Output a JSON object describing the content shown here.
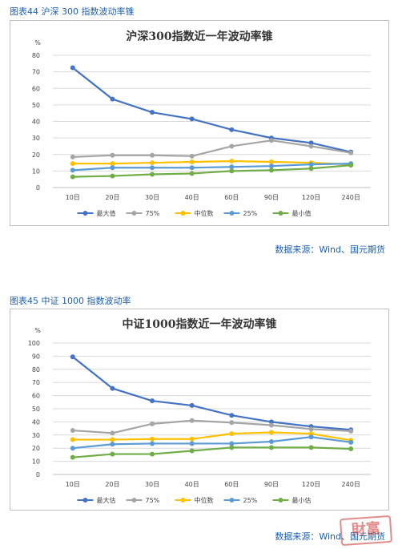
{
  "figures": [
    {
      "caption": "图表44 沪深 300 指数波动率锥",
      "source": "数据来源：Wind、国元期货"
    },
    {
      "caption": "图表45 中证 1000 指数波动率",
      "source": "数据来源：Wind、国元期货"
    }
  ],
  "watermark": "財富",
  "chart_data": [
    {
      "type": "line",
      "title": "沪深300指数近一年波动率锥",
      "ylabel": "%",
      "xlabel": "",
      "ylim": [
        0,
        80
      ],
      "yticks": [
        0,
        10,
        20,
        30,
        40,
        50,
        60,
        70,
        80
      ],
      "categories": [
        "10日",
        "20日",
        "30日",
        "40日",
        "60日",
        "90日",
        "120日",
        "240日"
      ],
      "grid": true,
      "legend_position": "bottom",
      "series": [
        {
          "name": "最大值",
          "color": "#4472c4",
          "values": [
            72.5,
            53.5,
            45.5,
            41.5,
            35,
            30,
            27,
            21.5
          ]
        },
        {
          "name": "75%",
          "color": "#a5a5a5",
          "values": [
            18.5,
            19.5,
            19.5,
            19,
            25,
            28.5,
            25,
            21
          ]
        },
        {
          "name": "中位数",
          "color": "#ffc000",
          "values": [
            14.5,
            14.5,
            15,
            15.5,
            16,
            15.5,
            15,
            14
          ]
        },
        {
          "name": "25%",
          "color": "#5b9bd5",
          "values": [
            10.5,
            12,
            12,
            12,
            12.5,
            13,
            14,
            14.5
          ]
        },
        {
          "name": "最小值",
          "color": "#70ad47",
          "values": [
            6.5,
            7,
            8,
            8.5,
            10,
            10.5,
            11.5,
            13.5
          ]
        }
      ]
    },
    {
      "type": "line",
      "title": "中证1000指数近一年波动率锥",
      "ylabel": "%",
      "xlabel": "",
      "ylim": [
        0,
        100
      ],
      "yticks": [
        0,
        10,
        20,
        30,
        40,
        50,
        60,
        70,
        80,
        90,
        100
      ],
      "categories": [
        "10日",
        "20日",
        "30日",
        "40日",
        "60日",
        "90日",
        "120日",
        "240日"
      ],
      "grid": true,
      "legend_position": "bottom",
      "series": [
        {
          "name": "最大估",
          "color": "#4472c4",
          "values": [
            89.5,
            65.5,
            56,
            52.5,
            45,
            40,
            36.5,
            34
          ]
        },
        {
          "name": "75%",
          "color": "#a5a5a5",
          "values": [
            33.5,
            31.5,
            38.5,
            41,
            39.5,
            37.5,
            34.5,
            33
          ]
        },
        {
          "name": "中位数",
          "color": "#ffc000",
          "values": [
            26.5,
            26.5,
            27,
            27,
            31,
            32,
            31,
            26
          ]
        },
        {
          "name": "25%",
          "color": "#5b9bd5",
          "values": [
            20,
            23,
            23.5,
            23.5,
            23.5,
            25,
            28.5,
            24.5
          ]
        },
        {
          "name": "最小估",
          "color": "#70ad47",
          "values": [
            13,
            15.5,
            15.5,
            18,
            20.5,
            20.5,
            20.5,
            19.5
          ]
        }
      ]
    }
  ]
}
